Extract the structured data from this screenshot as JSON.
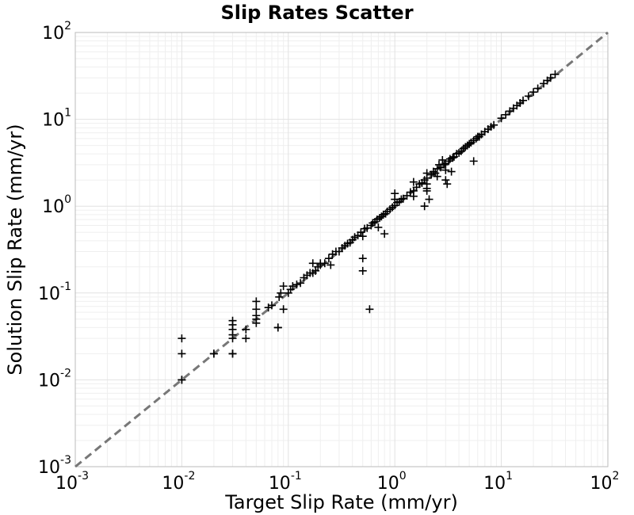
{
  "chart_data": {
    "type": "scatter",
    "title": "Slip Rates Scatter",
    "xlabel": "Target Slip Rate (mm/yr)",
    "ylabel": "Solution Slip Rate (mm/yr)",
    "xscale": "log",
    "yscale": "log",
    "xlim": [
      0.001,
      100
    ],
    "ylim": [
      0.001,
      100
    ],
    "x_ticks": [
      {
        "base": "10",
        "exp": "-3"
      },
      {
        "base": "10",
        "exp": "-2"
      },
      {
        "base": "10",
        "exp": "-1"
      },
      {
        "base": "10",
        "exp": "0"
      },
      {
        "base": "10",
        "exp": "1"
      },
      {
        "base": "10",
        "exp": "2"
      }
    ],
    "y_ticks": [
      {
        "base": "10",
        "exp": "-3"
      },
      {
        "base": "10",
        "exp": "-2"
      },
      {
        "base": "10",
        "exp": "-1"
      },
      {
        "base": "10",
        "exp": "0"
      },
      {
        "base": "10",
        "exp": "1"
      },
      {
        "base": "10",
        "exp": "2"
      }
    ],
    "grid": true,
    "marker": "plus",
    "marker_color": "#000000",
    "reference_line": {
      "style": "dashed",
      "color": "#777777",
      "from": [
        0.001,
        0.001
      ],
      "to": [
        100,
        100
      ]
    },
    "points": [
      [
        0.01,
        0.03
      ],
      [
        0.01,
        0.02
      ],
      [
        0.01,
        0.01
      ],
      [
        0.01,
        0.01
      ],
      [
        0.02,
        0.02
      ],
      [
        0.02,
        0.02
      ],
      [
        0.03,
        0.048
      ],
      [
        0.03,
        0.043
      ],
      [
        0.03,
        0.038
      ],
      [
        0.03,
        0.033
      ],
      [
        0.03,
        0.03
      ],
      [
        0.03,
        0.02
      ],
      [
        0.03,
        0.02
      ],
      [
        0.04,
        0.03
      ],
      [
        0.04,
        0.038
      ],
      [
        0.05,
        0.08
      ],
      [
        0.05,
        0.065
      ],
      [
        0.05,
        0.055
      ],
      [
        0.05,
        0.05
      ],
      [
        0.05,
        0.045
      ],
      [
        0.065,
        0.068
      ],
      [
        0.07,
        0.072
      ],
      [
        0.08,
        0.04
      ],
      [
        0.08,
        0.04
      ],
      [
        0.082,
        0.09
      ],
      [
        0.085,
        0.1
      ],
      [
        0.09,
        0.065
      ],
      [
        0.09,
        0.12
      ],
      [
        0.1,
        0.1
      ],
      [
        0.105,
        0.11
      ],
      [
        0.11,
        0.12
      ],
      [
        0.12,
        0.125
      ],
      [
        0.13,
        0.13
      ],
      [
        0.14,
        0.15
      ],
      [
        0.15,
        0.16
      ],
      [
        0.16,
        0.17
      ],
      [
        0.17,
        0.17
      ],
      [
        0.17,
        0.22
      ],
      [
        0.18,
        0.18
      ],
      [
        0.19,
        0.2
      ],
      [
        0.2,
        0.21
      ],
      [
        0.2,
        0.22
      ],
      [
        0.22,
        0.22
      ],
      [
        0.24,
        0.25
      ],
      [
        0.25,
        0.21
      ],
      [
        0.26,
        0.28
      ],
      [
        0.28,
        0.3
      ],
      [
        0.3,
        0.3
      ],
      [
        0.32,
        0.33
      ],
      [
        0.34,
        0.35
      ],
      [
        0.36,
        0.37
      ],
      [
        0.38,
        0.38
      ],
      [
        0.4,
        0.41
      ],
      [
        0.42,
        0.44
      ],
      [
        0.45,
        0.46
      ],
      [
        0.48,
        0.5
      ],
      [
        0.5,
        0.45
      ],
      [
        0.5,
        0.25
      ],
      [
        0.5,
        0.18
      ],
      [
        0.52,
        0.55
      ],
      [
        0.55,
        0.56
      ],
      [
        0.58,
        0.065
      ],
      [
        0.6,
        0.6
      ],
      [
        0.62,
        0.64
      ],
      [
        0.65,
        0.66
      ],
      [
        0.68,
        0.7
      ],
      [
        0.7,
        0.57
      ],
      [
        0.72,
        0.73
      ],
      [
        0.75,
        0.76
      ],
      [
        0.78,
        0.8
      ],
      [
        0.8,
        0.48
      ],
      [
        0.82,
        0.82
      ],
      [
        0.85,
        0.87
      ],
      [
        0.9,
        0.92
      ],
      [
        0.95,
        0.97
      ],
      [
        1.0,
        1.02
      ],
      [
        1.0,
        1.4
      ],
      [
        1.0,
        1.2
      ],
      [
        1.05,
        1.1
      ],
      [
        1.1,
        1.12
      ],
      [
        1.15,
        1.2
      ],
      [
        1.2,
        1.22
      ],
      [
        1.3,
        1.32
      ],
      [
        1.4,
        1.45
      ],
      [
        1.5,
        1.9
      ],
      [
        1.5,
        1.3
      ],
      [
        1.5,
        1.5
      ],
      [
        1.6,
        1.65
      ],
      [
        1.7,
        1.8
      ],
      [
        1.8,
        1.85
      ],
      [
        1.9,
        1.0
      ],
      [
        1.9,
        2.0
      ],
      [
        2.0,
        2.1
      ],
      [
        2.0,
        1.8
      ],
      [
        2.0,
        1.6
      ],
      [
        2.0,
        1.5
      ],
      [
        2.0,
        2.4
      ],
      [
        2.1,
        1.2
      ],
      [
        2.2,
        2.3
      ],
      [
        2.3,
        2.5
      ],
      [
        2.4,
        2.4
      ],
      [
        2.5,
        2.7
      ],
      [
        2.5,
        2.2
      ],
      [
        2.6,
        3.0
      ],
      [
        2.7,
        2.8
      ],
      [
        2.8,
        3.4
      ],
      [
        2.9,
        3.0
      ],
      [
        3.0,
        3.1
      ],
      [
        3.0,
        2.6
      ],
      [
        3.0,
        2.0
      ],
      [
        3.1,
        1.8
      ],
      [
        3.2,
        3.3
      ],
      [
        3.3,
        3.5
      ],
      [
        3.4,
        2.5
      ],
      [
        3.5,
        3.6
      ],
      [
        3.6,
        3.7
      ],
      [
        3.8,
        4.0
      ],
      [
        4.0,
        4.1
      ],
      [
        4.2,
        4.3
      ],
      [
        4.4,
        4.6
      ],
      [
        4.6,
        4.8
      ],
      [
        4.8,
        5.0
      ],
      [
        5.0,
        5.2
      ],
      [
        5.2,
        5.4
      ],
      [
        5.5,
        3.3
      ],
      [
        5.5,
        5.7
      ],
      [
        5.8,
        6.0
      ],
      [
        6.0,
        6.3
      ],
      [
        6.2,
        6.3
      ],
      [
        6.5,
        6.7
      ],
      [
        7.0,
        7.2
      ],
      [
        7.5,
        7.7
      ],
      [
        8.0,
        8.2
      ],
      [
        8.5,
        8.6
      ],
      [
        10.0,
        10.3
      ],
      [
        11.0,
        11.3
      ],
      [
        12.0,
        12.4
      ],
      [
        13.0,
        13.4
      ],
      [
        14.0,
        14.4
      ],
      [
        15.0,
        15.4
      ],
      [
        16.0,
        16.5
      ],
      [
        18.0,
        18.5
      ],
      [
        20.0,
        20.6
      ],
      [
        22.0,
        22.7
      ],
      [
        25.0,
        25.8
      ],
      [
        27.0,
        28.0
      ],
      [
        29.0,
        30.0
      ],
      [
        32.0,
        33.0
      ]
    ]
  }
}
